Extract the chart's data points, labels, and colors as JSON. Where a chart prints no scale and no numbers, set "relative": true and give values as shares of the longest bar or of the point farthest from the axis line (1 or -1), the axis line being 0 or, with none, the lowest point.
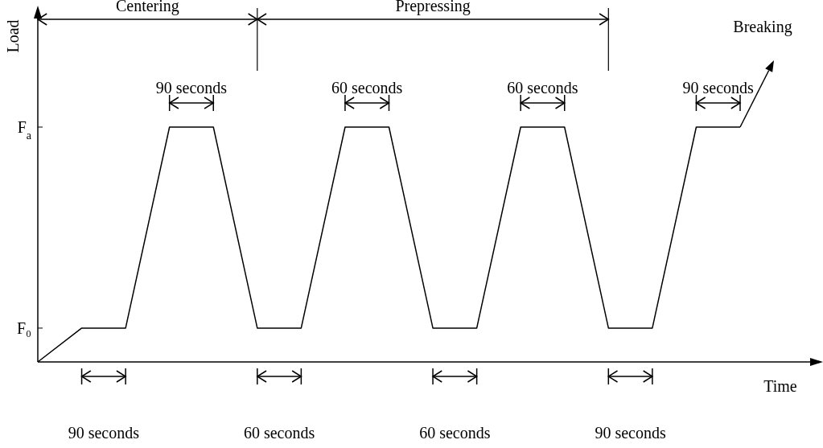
{
  "chart_data": {
    "type": "line",
    "xlabel": "Time",
    "ylabel": "Load",
    "relative": true,
    "categories": [
      null,
      null,
      null,
      null,
      null,
      null,
      null,
      null,
      null,
      null,
      null,
      null,
      null,
      null,
      null,
      null,
      null
    ],
    "series": [
      {
        "color": "#000000",
        "values": [
          0,
          0.144,
          0.144,
          1,
          1,
          0.144,
          0.144,
          1,
          1,
          0.144,
          0.144,
          1,
          1,
          0.144,
          0.144,
          1,
          1
        ]
      }
    ],
    "marker": "none",
    "line_style": "solid",
    "annotations": [
      "Centering",
      "Prepressing",
      "Breaking",
      "F₀",
      "F$_{a}$",
      "90 seconds",
      "60 seconds",
      "60 seconds",
      "90 seconds",
      "90 seconds",
      "60 seconds",
      "60 seconds",
      "90 seconds"
    ]
  }
}
